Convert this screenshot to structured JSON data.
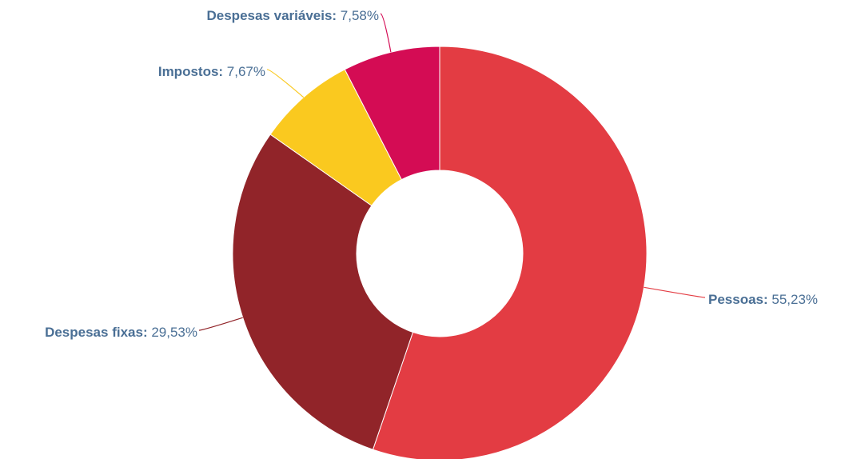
{
  "chart_data": {
    "type": "pie",
    "donut": true,
    "title": "",
    "legend": "none",
    "label_style": "outside-with-connectors",
    "label_color": "#4a6f95",
    "slices": [
      {
        "label": "Pessoas",
        "value": 55.23,
        "display": "55,23%",
        "color": "#e33c43"
      },
      {
        "label": "Despesas fixas",
        "value": 29.53,
        "display": "29,53%",
        "color": "#912429"
      },
      {
        "label": "Impostos",
        "value": 7.67,
        "display": "7,67%",
        "color": "#fac91f"
      },
      {
        "label": "Despesas variáveis",
        "value": 7.58,
        "display": "7,58%",
        "color": "#d40c54"
      }
    ]
  }
}
